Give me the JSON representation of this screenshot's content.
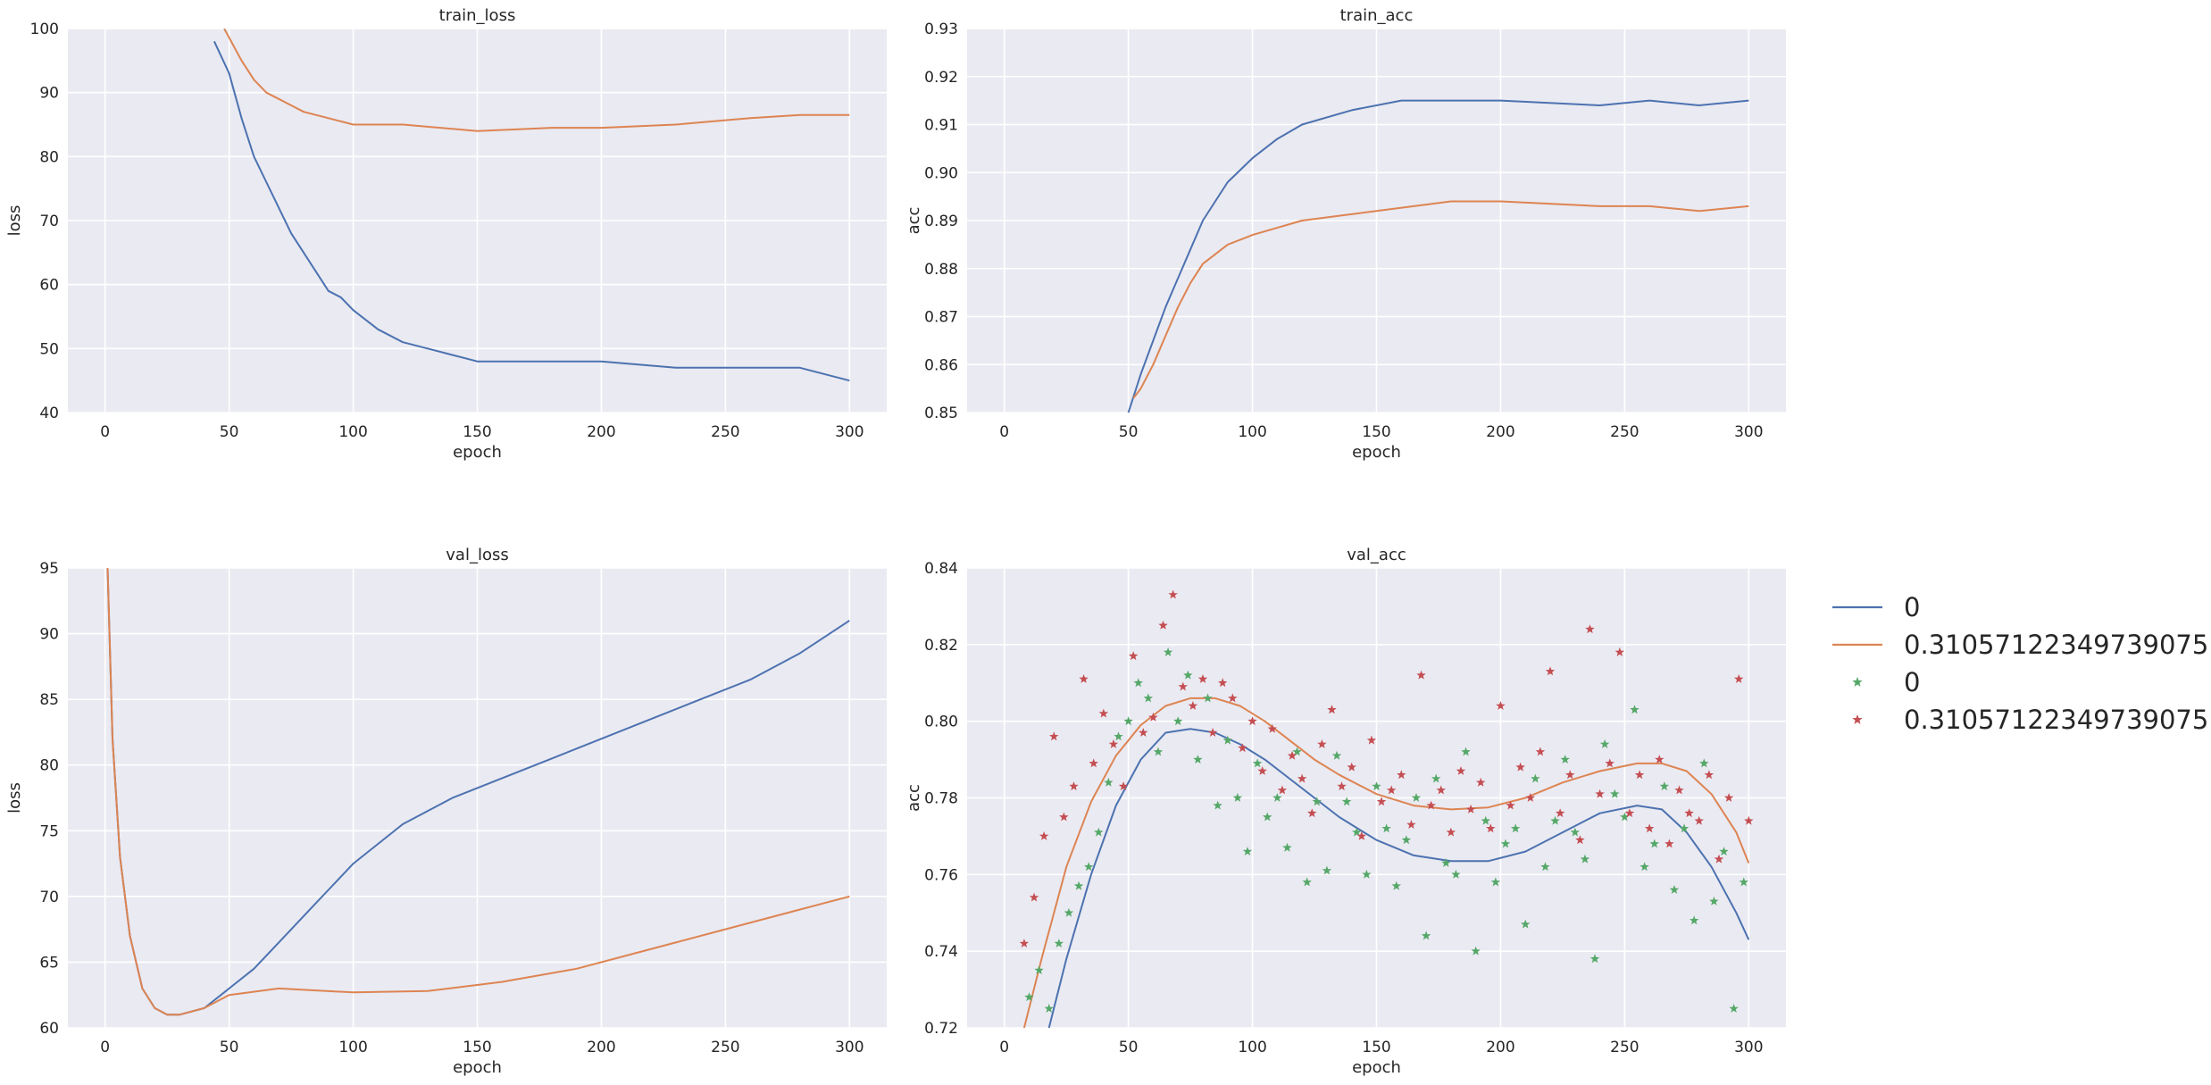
{
  "chart_data": [
    {
      "type": "line",
      "title": "train_loss",
      "xlabel": "epoch",
      "ylabel": "loss",
      "xlim": [
        -15,
        315
      ],
      "ylim": [
        40,
        100
      ],
      "xticks": [
        0,
        50,
        100,
        150,
        200,
        250,
        300
      ],
      "yticks": [
        40,
        50,
        60,
        70,
        80,
        90,
        100
      ],
      "grid": true,
      "series": [
        {
          "name": "0",
          "color": "#4c72b0",
          "x": [
            44,
            50,
            55,
            60,
            65,
            70,
            75,
            80,
            85,
            90,
            95,
            100,
            110,
            120,
            130,
            140,
            150,
            170,
            200,
            230,
            260,
            280,
            300
          ],
          "y": [
            98,
            93,
            86,
            80,
            76,
            72,
            68,
            65,
            62,
            59,
            58,
            56,
            53,
            51,
            50,
            49,
            48,
            48,
            48,
            47,
            47,
            47,
            45
          ]
        },
        {
          "name": "0.31057122349739075",
          "color": "#dd8452",
          "x": [
            48,
            55,
            60,
            65,
            70,
            75,
            80,
            90,
            100,
            120,
            150,
            180,
            200,
            230,
            260,
            280,
            300
          ],
          "y": [
            100,
            95,
            92,
            90,
            89,
            88,
            87,
            86,
            85,
            85,
            84,
            84.5,
            84.5,
            85,
            86,
            86.5,
            86.5
          ]
        }
      ]
    },
    {
      "type": "line",
      "title": "train_acc",
      "xlabel": "epoch",
      "ylabel": "acc",
      "xlim": [
        -15,
        315
      ],
      "ylim": [
        0.85,
        0.93
      ],
      "xticks": [
        0,
        50,
        100,
        150,
        200,
        250,
        300
      ],
      "yticks": [
        0.85,
        0.86,
        0.87,
        0.88,
        0.89,
        0.9,
        0.91,
        0.92,
        0.93
      ],
      "grid": true,
      "series": [
        {
          "name": "0",
          "color": "#4c72b0",
          "x": [
            50,
            55,
            60,
            65,
            70,
            75,
            80,
            90,
            100,
            110,
            120,
            140,
            160,
            200,
            240,
            260,
            280,
            300
          ],
          "y": [
            0.85,
            0.858,
            0.865,
            0.872,
            0.878,
            0.884,
            0.89,
            0.898,
            0.903,
            0.907,
            0.91,
            0.913,
            0.915,
            0.915,
            0.914,
            0.915,
            0.914,
            0.915
          ]
        },
        {
          "name": "0.31057122349739075",
          "color": "#dd8452",
          "x": [
            52,
            55,
            60,
            65,
            70,
            75,
            80,
            90,
            100,
            120,
            150,
            180,
            200,
            240,
            260,
            280,
            300
          ],
          "y": [
            0.853,
            0.855,
            0.86,
            0.866,
            0.872,
            0.877,
            0.881,
            0.885,
            0.887,
            0.89,
            0.892,
            0.894,
            0.894,
            0.893,
            0.893,
            0.892,
            0.893
          ]
        }
      ]
    },
    {
      "type": "line",
      "title": "val_loss",
      "xlabel": "epoch",
      "ylabel": "loss",
      "xlim": [
        -15,
        315
      ],
      "ylim": [
        60,
        95
      ],
      "xticks": [
        0,
        50,
        100,
        150,
        200,
        250,
        300
      ],
      "yticks": [
        60,
        65,
        70,
        75,
        80,
        85,
        90,
        95
      ],
      "grid": true,
      "series": [
        {
          "name": "0",
          "color": "#4c72b0",
          "x": [
            1,
            3,
            6,
            10,
            15,
            20,
            25,
            30,
            40,
            50,
            60,
            70,
            80,
            90,
            100,
            120,
            140,
            160,
            180,
            200,
            220,
            240,
            260,
            280,
            300
          ],
          "y": [
            95,
            82,
            73,
            67,
            63,
            61.5,
            61,
            61,
            61.5,
            63,
            64.5,
            66.5,
            68.5,
            70.5,
            72.5,
            75.5,
            77.5,
            79,
            80.5,
            82,
            83.5,
            85,
            86.5,
            88.5,
            91
          ]
        },
        {
          "name": "0.31057122349739075",
          "color": "#dd8452",
          "x": [
            1,
            3,
            6,
            10,
            15,
            20,
            25,
            30,
            40,
            50,
            70,
            100,
            130,
            160,
            190,
            210,
            230,
            250,
            270,
            290,
            300
          ],
          "y": [
            95,
            82,
            73,
            67,
            63,
            61.5,
            61,
            61,
            61.5,
            62.5,
            63,
            62.7,
            62.8,
            63.5,
            64.5,
            65.5,
            66.5,
            67.5,
            68.5,
            69.5,
            70
          ]
        }
      ]
    },
    {
      "type": "scatter",
      "title": "val_acc",
      "xlabel": "epoch",
      "ylabel": "acc",
      "xlim": [
        -15,
        315
      ],
      "ylim": [
        0.72,
        0.84
      ],
      "xticks": [
        0,
        50,
        100,
        150,
        200,
        250,
        300
      ],
      "yticks": [
        0.72,
        0.74,
        0.76,
        0.78,
        0.8,
        0.82,
        0.84
      ],
      "grid": true,
      "series": [
        {
          "name": "0",
          "kind": "line",
          "color": "#4c72b0",
          "x": [
            18,
            25,
            35,
            45,
            55,
            65,
            75,
            85,
            95,
            105,
            115,
            125,
            135,
            150,
            165,
            180,
            195,
            210,
            225,
            240,
            255,
            265,
            275,
            285,
            295,
            300
          ],
          "y": [
            0.72,
            0.738,
            0.76,
            0.778,
            0.79,
            0.797,
            0.798,
            0.797,
            0.794,
            0.79,
            0.785,
            0.78,
            0.775,
            0.769,
            0.765,
            0.7635,
            0.7635,
            0.766,
            0.771,
            0.776,
            0.778,
            0.777,
            0.771,
            0.762,
            0.75,
            0.743
          ]
        },
        {
          "name": "0.31057122349739075",
          "kind": "line",
          "color": "#dd8452",
          "x": [
            8,
            15,
            25,
            35,
            45,
            55,
            65,
            75,
            85,
            95,
            105,
            115,
            125,
            135,
            150,
            165,
            180,
            195,
            210,
            225,
            240,
            255,
            265,
            275,
            285,
            295,
            300
          ],
          "y": [
            0.72,
            0.738,
            0.762,
            0.779,
            0.791,
            0.799,
            0.804,
            0.806,
            0.806,
            0.804,
            0.8,
            0.795,
            0.79,
            0.786,
            0.781,
            0.778,
            0.777,
            0.7775,
            0.78,
            0.784,
            0.787,
            0.789,
            0.789,
            0.787,
            0.781,
            0.771,
            0.763
          ]
        },
        {
          "name": "0",
          "kind": "points",
          "color": "#55a868",
          "x": [
            10,
            14,
            18,
            22,
            26,
            30,
            34,
            38,
            42,
            46,
            50,
            54,
            58,
            62,
            66,
            70,
            74,
            78,
            82,
            86,
            90,
            94,
            98,
            102,
            106,
            110,
            114,
            118,
            122,
            126,
            130,
            134,
            138,
            142,
            146,
            150,
            154,
            158,
            162,
            166,
            170,
            174,
            178,
            182,
            186,
            190,
            194,
            198,
            202,
            206,
            210,
            214,
            218,
            222,
            226,
            230,
            234,
            238,
            242,
            246,
            250,
            254,
            258,
            262,
            266,
            270,
            274,
            278,
            282,
            286,
            290,
            294,
            298
          ],
          "y": [
            0.728,
            0.735,
            0.725,
            0.742,
            0.75,
            0.757,
            0.762,
            0.771,
            0.784,
            0.796,
            0.8,
            0.81,
            0.806,
            0.792,
            0.818,
            0.8,
            0.812,
            0.79,
            0.806,
            0.778,
            0.795,
            0.78,
            0.766,
            0.789,
            0.775,
            0.78,
            0.767,
            0.792,
            0.758,
            0.779,
            0.761,
            0.791,
            0.779,
            0.771,
            0.76,
            0.783,
            0.772,
            0.757,
            0.769,
            0.78,
            0.744,
            0.785,
            0.763,
            0.76,
            0.792,
            0.74,
            0.774,
            0.758,
            0.768,
            0.772,
            0.747,
            0.785,
            0.762,
            0.774,
            0.79,
            0.771,
            0.764,
            0.738,
            0.794,
            0.781,
            0.775,
            0.803,
            0.762,
            0.768,
            0.783,
            0.756,
            0.772,
            0.748,
            0.789,
            0.753,
            0.766,
            0.725,
            0.758
          ]
        },
        {
          "name": "0.31057122349739075",
          "kind": "points",
          "color": "#c44e52",
          "x": [
            8,
            12,
            16,
            20,
            24,
            28,
            32,
            36,
            40,
            44,
            48,
            52,
            56,
            60,
            64,
            68,
            72,
            76,
            80,
            84,
            88,
            92,
            96,
            100,
            104,
            108,
            112,
            116,
            120,
            124,
            128,
            132,
            136,
            140,
            144,
            148,
            152,
            156,
            160,
            164,
            168,
            172,
            176,
            180,
            184,
            188,
            192,
            196,
            200,
            204,
            208,
            212,
            216,
            220,
            224,
            228,
            232,
            236,
            240,
            244,
            248,
            252,
            256,
            260,
            264,
            268,
            272,
            276,
            280,
            284,
            288,
            292,
            296,
            300
          ],
          "y": [
            0.742,
            0.754,
            0.77,
            0.796,
            0.775,
            0.783,
            0.811,
            0.789,
            0.802,
            0.794,
            0.783,
            0.817,
            0.797,
            0.801,
            0.825,
            0.833,
            0.809,
            0.804,
            0.811,
            0.797,
            0.81,
            0.806,
            0.793,
            0.8,
            0.787,
            0.798,
            0.782,
            0.791,
            0.785,
            0.776,
            0.794,
            0.803,
            0.783,
            0.788,
            0.77,
            0.795,
            0.779,
            0.782,
            0.786,
            0.773,
            0.812,
            0.778,
            0.782,
            0.771,
            0.787,
            0.777,
            0.784,
            0.772,
            0.804,
            0.778,
            0.788,
            0.78,
            0.792,
            0.813,
            0.776,
            0.786,
            0.769,
            0.824,
            0.781,
            0.789,
            0.818,
            0.776,
            0.786,
            0.772,
            0.79,
            0.768,
            0.782,
            0.776,
            0.774,
            0.786,
            0.764,
            0.78,
            0.811,
            0.774
          ]
        }
      ]
    }
  ],
  "legend": {
    "placement": "right",
    "entries": [
      {
        "label": "0",
        "marker": "line",
        "color": "#4c72b0"
      },
      {
        "label": "0.31057122349739075",
        "marker": "line",
        "color": "#dd8452"
      },
      {
        "label": "0",
        "marker": "star",
        "color": "#55a868"
      },
      {
        "label": "0.31057122349739075",
        "marker": "star",
        "color": "#c44e52"
      }
    ]
  }
}
